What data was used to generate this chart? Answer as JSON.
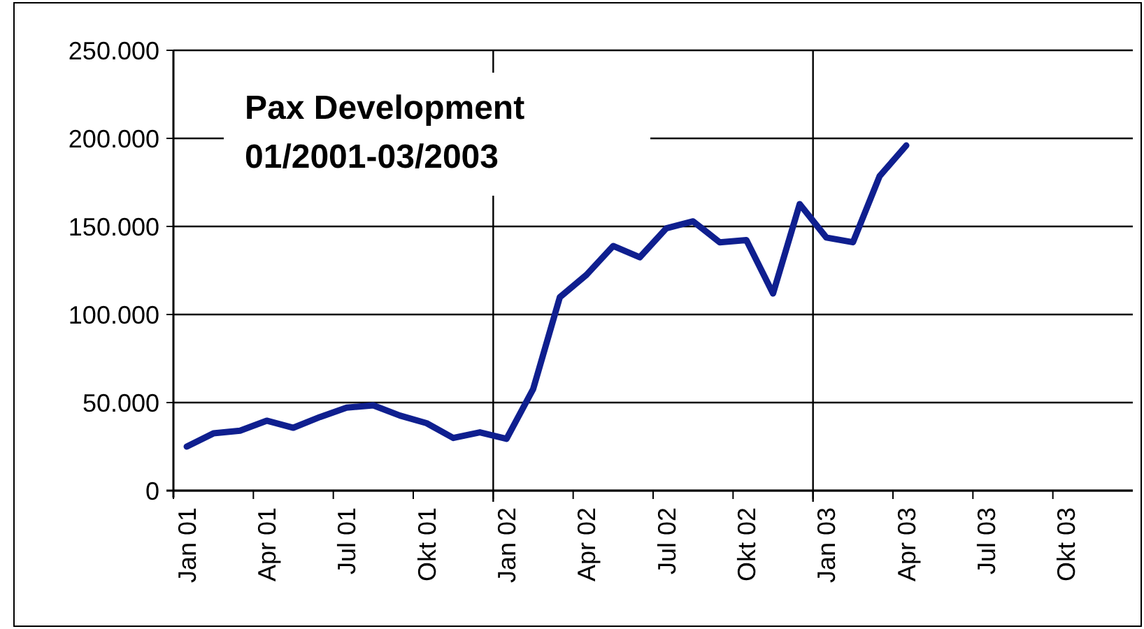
{
  "chart_data": {
    "type": "line",
    "title": "Pax Development",
    "subtitle": "01/2001-03/2003",
    "categories": [
      "Jan 01",
      null,
      null,
      "Apr 01",
      null,
      null,
      "Jul 01",
      null,
      null,
      "Okt 01",
      null,
      null,
      "Jan 02",
      null,
      null,
      "Apr 02",
      null,
      null,
      "Jul 02",
      null,
      null,
      "Okt 02",
      null,
      null,
      "Jan 03",
      null,
      null,
      "Apr 03",
      null,
      null,
      "Jul 03",
      null,
      null,
      "Okt 03",
      null,
      null
    ],
    "series": [
      {
        "color": "#0f1f8f",
        "values": [
          25000,
          32500,
          34000,
          39700,
          35700,
          41800,
          47100,
          48400,
          42600,
          38300,
          29900,
          33100,
          29400,
          57700,
          109800,
          122500,
          138900,
          132500,
          149000,
          152900,
          141000,
          142300,
          111900,
          162700,
          143700,
          141000,
          178600,
          196000,
          null,
          null,
          null,
          null,
          null,
          null,
          null,
          null
        ]
      }
    ],
    "ylim": [
      0,
      250000
    ],
    "yticks": [
      0,
      {
        "value": 50000,
        "label": "50.000"
      },
      {
        "value": 100000,
        "label": "100.000"
      },
      {
        "value": 150000,
        "label": "150.000"
      },
      {
        "value": 200000,
        "label": "200.000"
      },
      {
        "value": 250000,
        "label": "250.000"
      }
    ],
    "grid": true,
    "marker": "none",
    "line_style": "solid"
  }
}
